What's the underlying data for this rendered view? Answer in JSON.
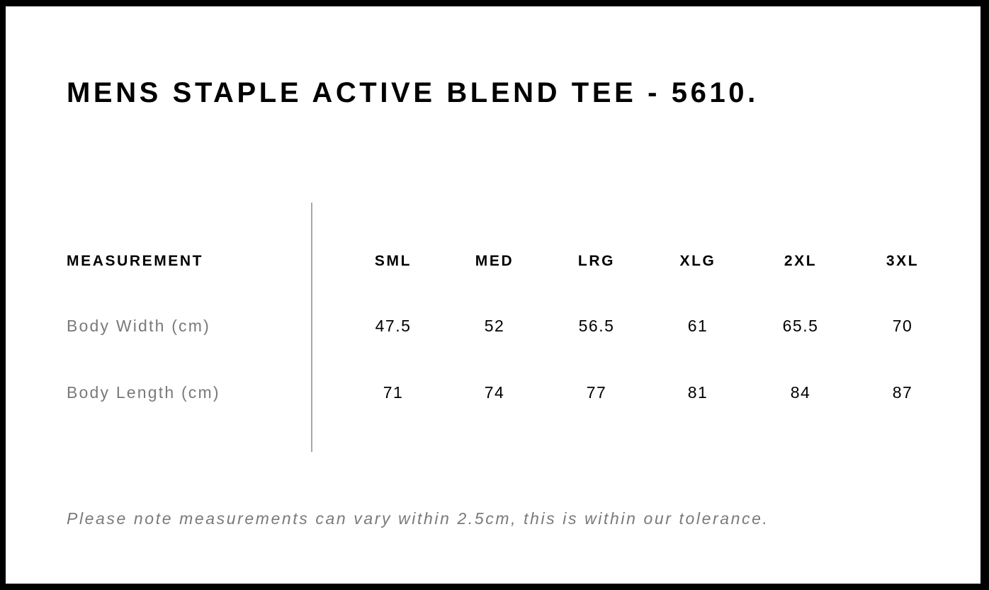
{
  "title": "MENS STAPLE ACTIVE BLEND TEE - 5610.",
  "table": {
    "header_label": "MEASUREMENT",
    "sizes": [
      "SML",
      "MED",
      "LRG",
      "XLG",
      "2XL",
      "3XL"
    ],
    "rows": [
      {
        "label": "Body Width (cm)",
        "values": [
          "47.5",
          "52",
          "56.5",
          "61",
          "65.5",
          "70"
        ]
      },
      {
        "label": "Body Length (cm)",
        "values": [
          "71",
          "74",
          "77",
          "81",
          "84",
          "87"
        ]
      }
    ]
  },
  "note": "Please note measurements can vary within 2.5cm, this is within our tolerance."
}
